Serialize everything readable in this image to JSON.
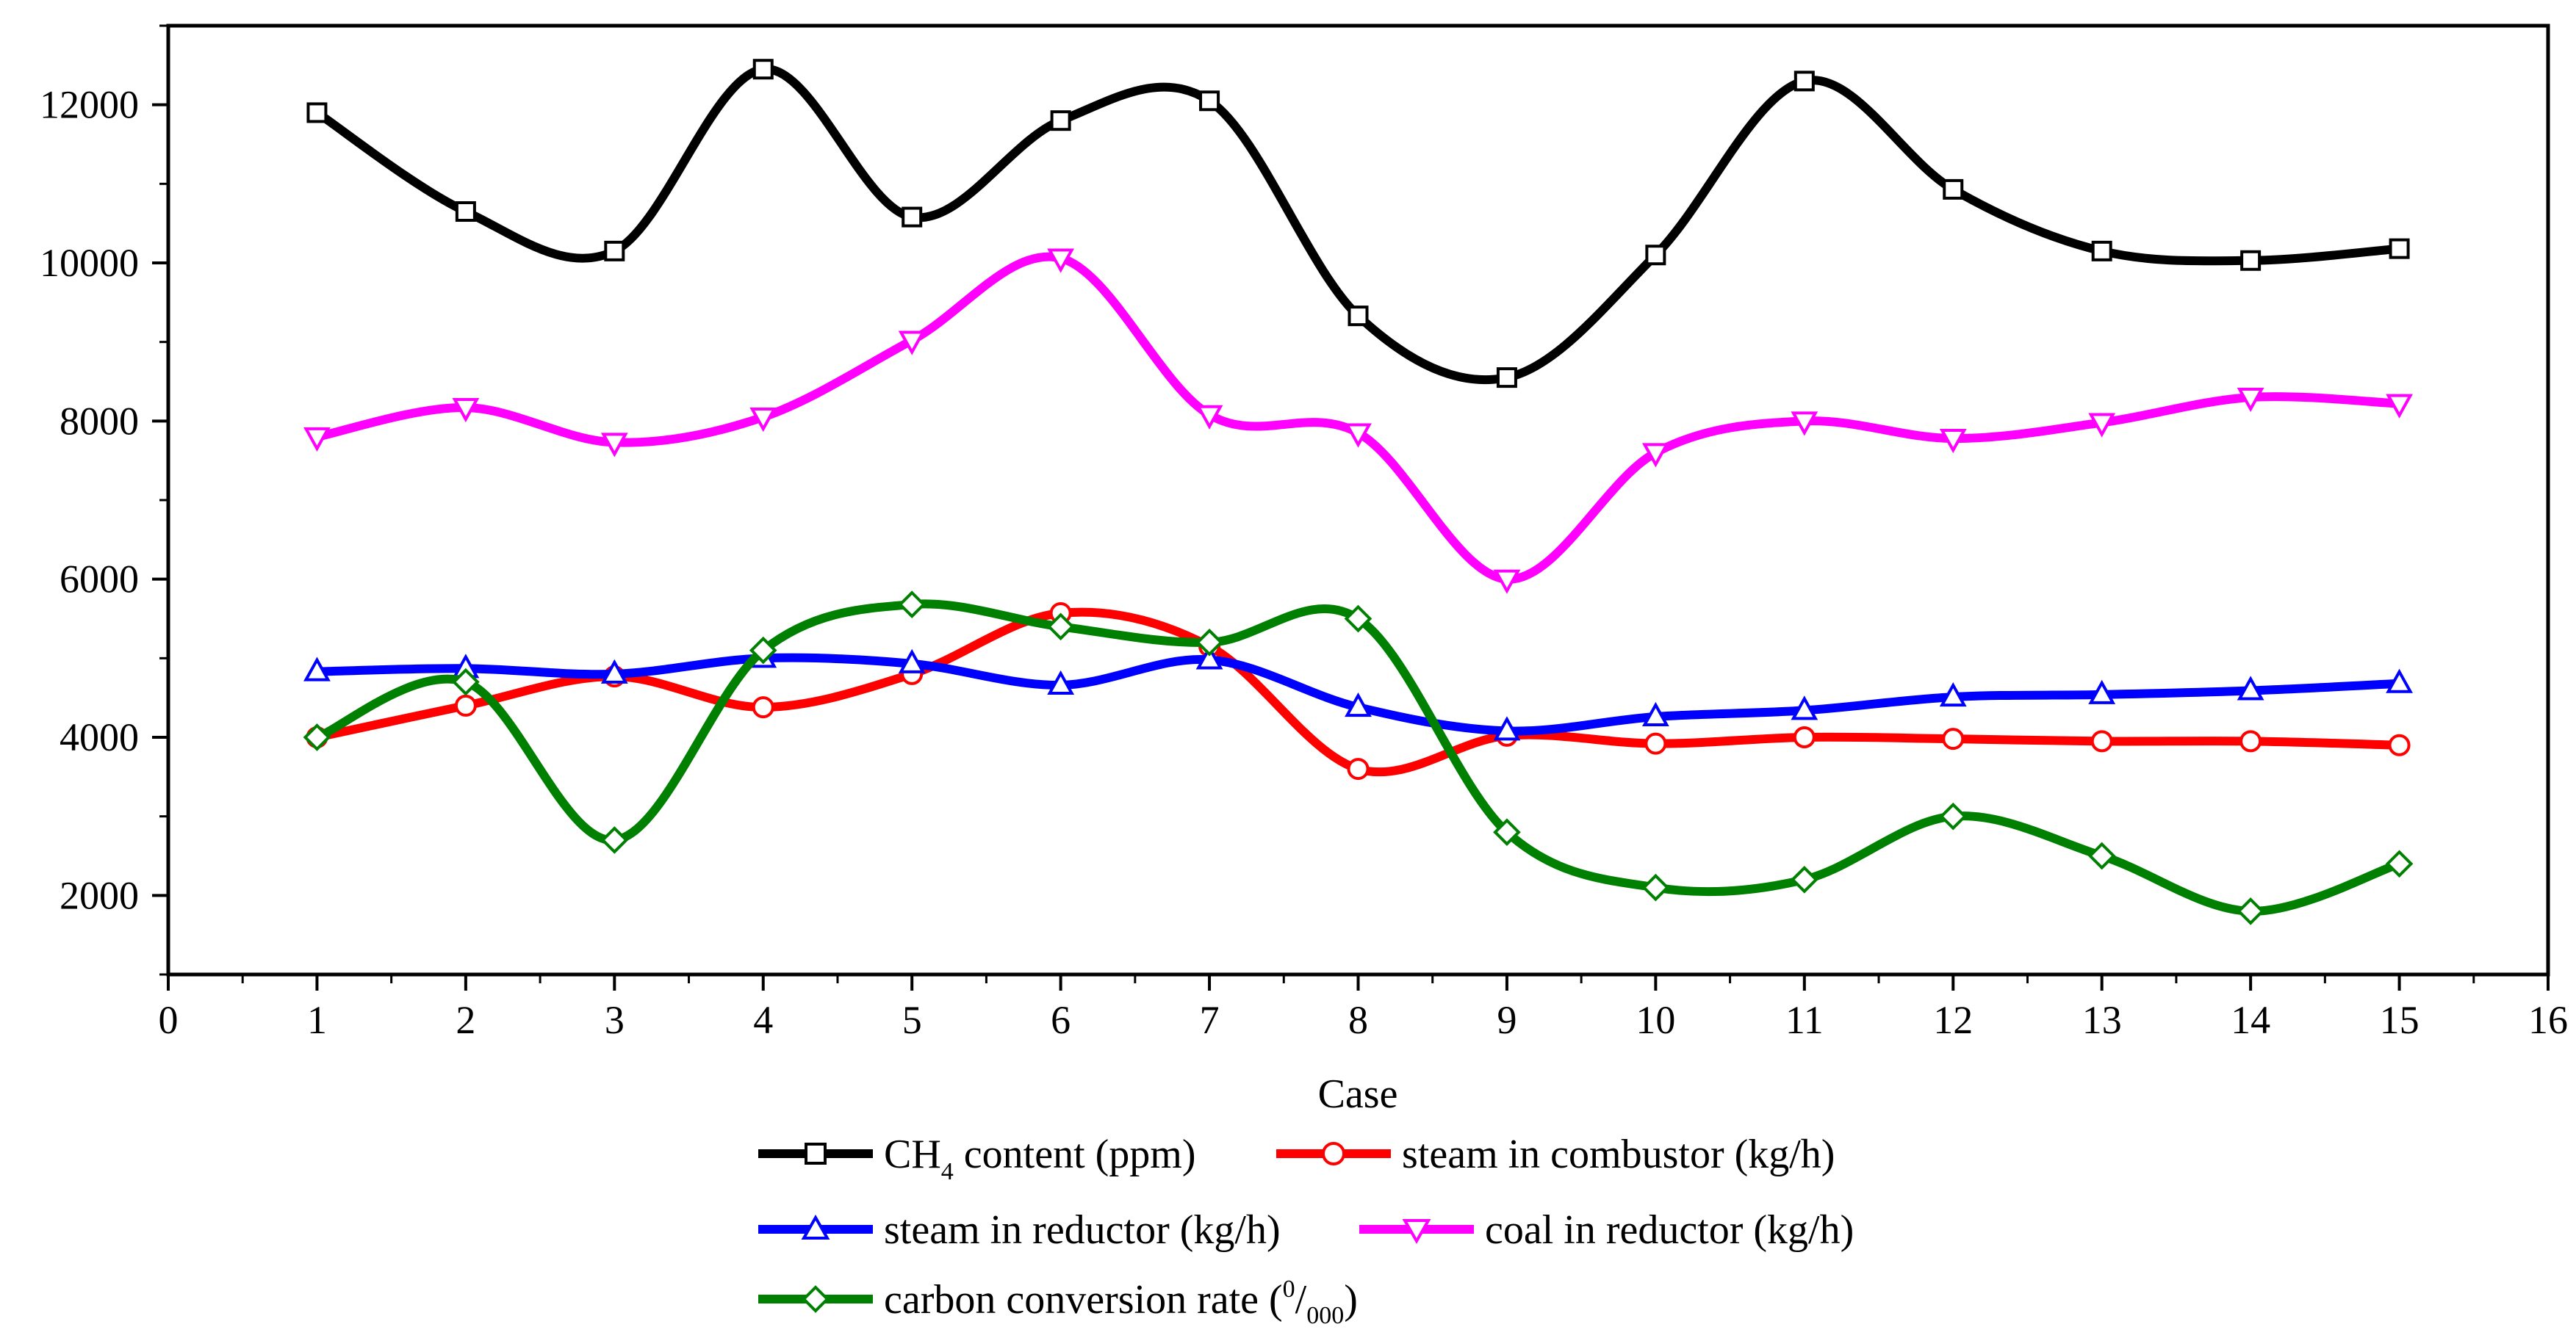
{
  "chart_data": {
    "type": "line",
    "title": "",
    "xlabel": "Case",
    "ylabel": "",
    "xlim": [
      0,
      16
    ],
    "ylim": [
      1000,
      13000
    ],
    "xticks": [
      0,
      1,
      2,
      3,
      4,
      5,
      6,
      7,
      8,
      9,
      10,
      11,
      12,
      13,
      14,
      15,
      16
    ],
    "yticks": [
      2000,
      4000,
      6000,
      8000,
      10000,
      12000
    ],
    "x": [
      1,
      2,
      3,
      4,
      5,
      6,
      7,
      8,
      9,
      10,
      11,
      12,
      13,
      14,
      15
    ],
    "legend_position": "bottom",
    "series": [
      {
        "name": "CH4 content (ppm)",
        "label_main": "CH",
        "label_sub": "4",
        "label_rest": " content (ppm)",
        "color": "#000000",
        "marker": "square",
        "values": [
          11900,
          10650,
          10150,
          12450,
          10580,
          11800,
          12050,
          9330,
          8550,
          10100,
          12300,
          10930,
          10150,
          10030,
          10180
        ]
      },
      {
        "name": "steam in combustor (kg/h)",
        "label_main": "steam in combustor (kg/h)",
        "color": "#ff0000",
        "marker": "circle",
        "values": [
          4000,
          4400,
          4770,
          4380,
          4800,
          5570,
          5150,
          3600,
          4020,
          3920,
          4000,
          3980,
          3950,
          3950,
          3900
        ]
      },
      {
        "name": "steam in reductor (kg/h)",
        "label_main": "steam in reductor (kg/h)",
        "color": "#0000ff",
        "marker": "triangle-up",
        "values": [
          4830,
          4870,
          4800,
          5000,
          4930,
          4660,
          4980,
          4380,
          4080,
          4260,
          4340,
          4510,
          4540,
          4590,
          4680
        ]
      },
      {
        "name": "coal in reductor (kg/h)",
        "label_main": "coal in reductor (kg/h)",
        "color": "#ff00ff",
        "marker": "triangle-down",
        "values": [
          7800,
          8170,
          7730,
          8050,
          9020,
          10060,
          8080,
          7850,
          6000,
          7600,
          8000,
          7780,
          7980,
          8300,
          8220
        ]
      },
      {
        "name": "carbon conversion rate (0/000)",
        "label_main": "carbon conversion rate (",
        "label_sup": "0",
        "label_slash": "/",
        "label_sub": "000",
        "label_close": ")",
        "color": "#008000",
        "marker": "diamond",
        "values": [
          4000,
          4700,
          2700,
          5100,
          5680,
          5400,
          5200,
          5500,
          2800,
          2100,
          2200,
          3000,
          2500,
          1800,
          2400
        ]
      }
    ]
  }
}
